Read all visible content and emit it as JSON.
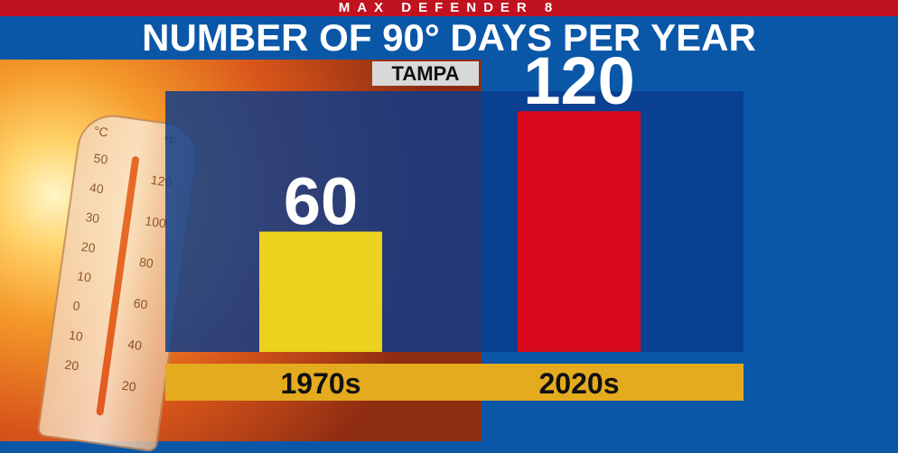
{
  "header": {
    "kicker": "MAX DEFENDER 8",
    "title": "NUMBER OF 90° DAYS PER YEAR",
    "location": "TAMPA"
  },
  "thermometer": {
    "celsius_label": "°C",
    "fahrenheit_label": "°F",
    "celsius_ticks": [
      "50",
      "40",
      "30",
      "20",
      "10",
      "0",
      "10",
      "20"
    ],
    "fahrenheit_ticks": [
      "120",
      "100",
      "80",
      "60",
      "40",
      "20"
    ]
  },
  "colors": {
    "bar_1970s": "#ebd21c",
    "bar_2020s": "#d90a1e",
    "category_band": "#e5ab1f",
    "title_bar": "#c1121f",
    "background_blue": "#0a57a8"
  },
  "chart_data": {
    "type": "bar",
    "title": "NUMBER OF 90° DAYS PER YEAR",
    "subtitle": "TAMPA",
    "categories": [
      "1970s",
      "2020s"
    ],
    "values": [
      60,
      120
    ],
    "value_labels": [
      "60",
      "120"
    ],
    "ylim": [
      0,
      130
    ],
    "grid": false,
    "legend": "none"
  }
}
